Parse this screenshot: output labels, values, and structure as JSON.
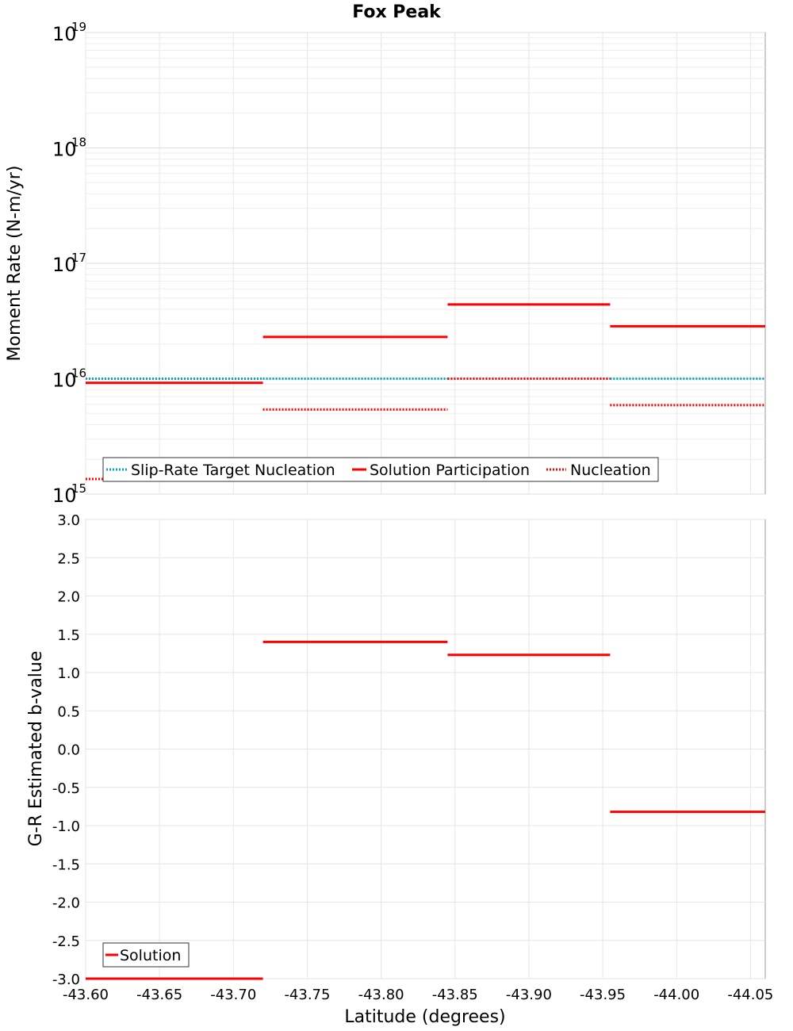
{
  "chart_data": [
    {
      "type": "line",
      "title": "Fox Peak",
      "xlabel": "",
      "ylabel": "Moment Rate (N-m/yr)",
      "yscale": "log",
      "ylim": [
        1000000000000000.0,
        1e+19
      ],
      "xlim": [
        -43.6,
        -44.06
      ],
      "grid": true,
      "legend_position": "bottom-left",
      "y_ticks": [
        {
          "base": "10",
          "exp": "15"
        },
        {
          "base": "10",
          "exp": "16"
        },
        {
          "base": "10",
          "exp": "17"
        },
        {
          "base": "10",
          "exp": "18"
        },
        {
          "base": "10",
          "exp": "19"
        }
      ],
      "series": [
        {
          "name": "Slip-Rate Target Nucleation",
          "color": "#00b0b0",
          "style": "dotted",
          "segments": [
            {
              "x0": -43.6,
              "x1": -43.72,
              "y": 1e+16
            },
            {
              "x0": -43.72,
              "x1": -43.845,
              "y": 1e+16
            },
            {
              "x0": -43.845,
              "x1": -43.955,
              "y": 1e+16
            },
            {
              "x0": -43.955,
              "x1": -44.06,
              "y": 1e+16
            }
          ]
        },
        {
          "name": "Solution Participation",
          "color": "#ff0000",
          "style": "solid",
          "segments": [
            {
              "x0": -43.6,
              "x1": -43.72,
              "y": 9200000000000000.0
            },
            {
              "x0": -43.72,
              "x1": -43.845,
              "y": 2.3e+16
            },
            {
              "x0": -43.845,
              "x1": -43.955,
              "y": 4.4e+16
            },
            {
              "x0": -43.955,
              "x1": -44.06,
              "y": 2.85e+16
            }
          ]
        },
        {
          "name": "Nucleation",
          "color": "#ff0000",
          "style": "dotted",
          "segments": [
            {
              "x0": -43.6,
              "x1": -43.72,
              "y": 1350000000000000.0
            },
            {
              "x0": -43.72,
              "x1": -43.845,
              "y": 5400000000000000.0
            },
            {
              "x0": -43.845,
              "x1": -43.955,
              "y": 1e+16
            },
            {
              "x0": -43.955,
              "x1": -44.06,
              "y": 5900000000000000.0
            }
          ]
        }
      ]
    },
    {
      "type": "line",
      "title": "",
      "xlabel": "Latitude (degrees)",
      "ylabel": "G-R Estimated b-value",
      "ylim": [
        -3.0,
        3.0
      ],
      "xlim": [
        -43.6,
        -44.06
      ],
      "grid": true,
      "legend_position": "bottom-left",
      "y_ticks": [
        "3.0",
        "2.5",
        "2.0",
        "1.5",
        "1.0",
        "0.5",
        "0.0",
        "-0.5",
        "-1.0",
        "-1.5",
        "-2.0",
        "-2.5",
        "-3.0"
      ],
      "x_ticks": [
        "-43.60",
        "-43.65",
        "-43.70",
        "-43.75",
        "-43.80",
        "-43.85",
        "-43.90",
        "-43.95",
        "-44.00",
        "-44.05"
      ],
      "series": [
        {
          "name": "Solution",
          "color": "#ff0000",
          "style": "solid",
          "segments": [
            {
              "x0": -43.6,
              "x1": -43.72,
              "y": -3.0
            },
            {
              "x0": -43.72,
              "x1": -43.845,
              "y": 1.4
            },
            {
              "x0": -43.845,
              "x1": -43.955,
              "y": 1.23
            },
            {
              "x0": -43.955,
              "x1": -44.06,
              "y": -0.82
            }
          ]
        }
      ]
    }
  ]
}
